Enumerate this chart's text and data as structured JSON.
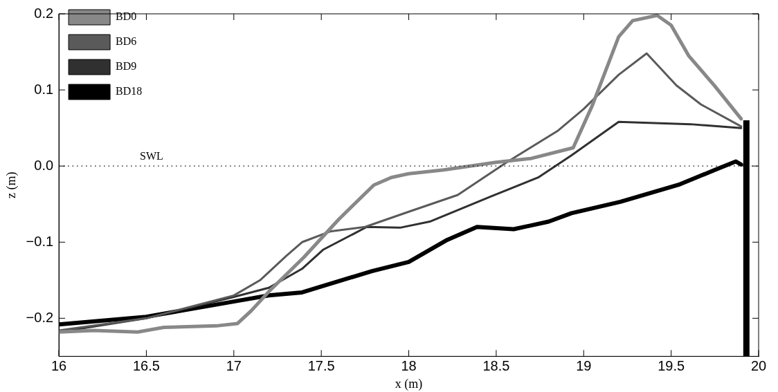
{
  "chart_data": {
    "type": "line",
    "xlabel": "x (m)",
    "ylabel": "z (m)",
    "xlim": [
      16,
      20
    ],
    "xticks": [
      16,
      16.5,
      17,
      17.5,
      18,
      18.5,
      19,
      19.5,
      20
    ],
    "ylim": [
      -0.25,
      0.2
    ],
    "yticks": [
      -0.2,
      -0.1,
      {
        "value": 0,
        "label": "0.0"
      },
      0.1,
      0.2
    ],
    "legend": "top left",
    "grid": false,
    "marker": "none",
    "line_style": "solid",
    "ref_lines": [
      {
        "axis": "y",
        "value": 0,
        "label": "SWL",
        "color": "#000000",
        "line_style": "dotted"
      }
    ],
    "series": [
      {
        "name": "BD0",
        "color": "#888888",
        "x": [
          16,
          16.2,
          16.45,
          16.6,
          16.9,
          17.02,
          17.1,
          17.2,
          17.4,
          17.6,
          17.8,
          17.9,
          18,
          18.2,
          18.5,
          18.7,
          18.94,
          19.05,
          19.2,
          19.28,
          19.42,
          19.5,
          19.6,
          19.75,
          19.9
        ],
        "values": [
          -0.218,
          -0.216,
          -0.218,
          -0.212,
          -0.21,
          -0.207,
          -0.19,
          -0.165,
          -0.12,
          -0.07,
          -0.025,
          -0.015,
          -0.01,
          -0.005,
          0.005,
          0.01,
          0.024,
          0.08,
          0.17,
          0.191,
          0.198,
          0.185,
          0.145,
          0.105,
          0.062
        ]
      },
      {
        "name": "BD6",
        "color": "#5a5a5a",
        "x": [
          16,
          16.5,
          17,
          17.15,
          17.3,
          17.39,
          17.55,
          17.75,
          18,
          18.28,
          18.56,
          18.85,
          19,
          19.2,
          19.36,
          19.53,
          19.67,
          19.9
        ],
        "values": [
          -0.216,
          -0.2,
          -0.17,
          -0.15,
          -0.118,
          -0.1,
          -0.086,
          -0.08,
          -0.06,
          -0.038,
          0.005,
          0.046,
          0.075,
          0.12,
          0.148,
          0.106,
          0.081,
          0.052
        ]
      },
      {
        "name": "BD9",
        "color": "#303030",
        "x": [
          16,
          16.5,
          17,
          17.2,
          17.39,
          17.51,
          17.76,
          17.95,
          18.12,
          18.47,
          18.74,
          18.93,
          19.2,
          19.61,
          19.9
        ],
        "values": [
          -0.218,
          -0.2,
          -0.172,
          -0.16,
          -0.135,
          -0.11,
          -0.08,
          -0.081,
          -0.073,
          -0.04,
          -0.015,
          0.014,
          0.058,
          0.055,
          0.05
        ]
      },
      {
        "name": "BD18",
        "color": "#000000",
        "x": [
          16,
          16.5,
          17,
          17.2,
          17.39,
          17.79,
          18,
          18.22,
          18.39,
          18.6,
          18.8,
          18.93,
          19.21,
          19.55,
          19.75,
          19.87,
          19.9
        ],
        "values": [
          -0.208,
          -0.198,
          -0.178,
          -0.17,
          -0.166,
          -0.138,
          -0.126,
          -0.097,
          -0.08,
          -0.083,
          -0.073,
          -0.062,
          -0.047,
          -0.024,
          -0.005,
          0.006,
          0.002
        ]
      },
      {
        "color": "#000000",
        "x": [
          19.93,
          19.93
        ],
        "values": [
          -0.25,
          0.06
        ]
      }
    ]
  }
}
